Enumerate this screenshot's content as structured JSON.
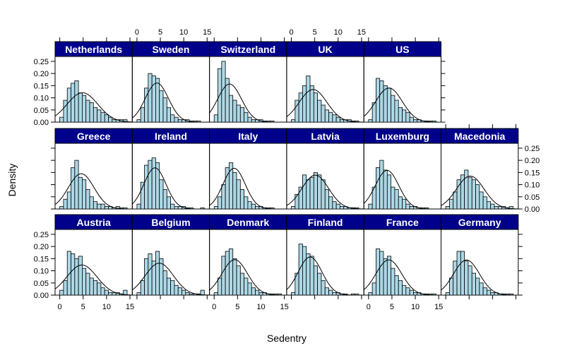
{
  "chart_data": {
    "type": "histogram",
    "xlabel": "Sedentry",
    "ylabel": "Density",
    "xlim": [
      -1,
      15.5
    ],
    "ylim": [
      0,
      0.27
    ],
    "x_ticks": [
      0,
      5,
      10,
      15
    ],
    "y_ticks": [
      0.0,
      0.05,
      0.1,
      0.15,
      0.2,
      0.25
    ],
    "x_tick_labels": [
      "0",
      "5",
      "10",
      "15"
    ],
    "y_tick_labels": [
      "0.00",
      "0.05",
      "0.10",
      "0.15",
      "0.20",
      "0.25"
    ],
    "bin_width": 0.8,
    "bin_start": 0,
    "grid": false,
    "layout": {
      "columns": 6,
      "rows": 3
    },
    "colors": {
      "bar_fill": "#add8e6",
      "strip_fill": "#00008b",
      "strip_text": "#ffffff",
      "curve": "#000000"
    },
    "panels": [
      {
        "name": "Netherlands",
        "row": 2,
        "col": 0,
        "density": [
          0.02,
          0.09,
          0.14,
          0.16,
          0.17,
          0.12,
          0.11,
          0.09,
          0.08,
          0.06,
          0.05,
          0.04,
          0.03,
          0.02,
          0.01,
          0.01,
          0.01,
          0.01
        ]
      },
      {
        "name": "Sweden",
        "row": 2,
        "col": 1,
        "density": [
          0.01,
          0.06,
          0.14,
          0.2,
          0.19,
          0.18,
          0.13,
          0.1,
          0.06,
          0.03,
          0.02,
          0.01,
          0.01,
          0.01,
          0.005,
          0.005,
          0.005,
          0.0
        ]
      },
      {
        "name": "Switzerland",
        "row": 2,
        "col": 2,
        "density": [
          0.03,
          0.22,
          0.25,
          0.18,
          0.11,
          0.09,
          0.07,
          0.06,
          0.04,
          0.02,
          0.01,
          0.01,
          0.01,
          0.005,
          0.005,
          0.005,
          0.0,
          0.0
        ]
      },
      {
        "name": "UK",
        "row": 2,
        "col": 3,
        "density": [
          0.01,
          0.09,
          0.12,
          0.15,
          0.19,
          0.15,
          0.12,
          0.09,
          0.07,
          0.05,
          0.04,
          0.03,
          0.02,
          0.01,
          0.01,
          0.01,
          0.005,
          0.005
        ]
      },
      {
        "name": "US",
        "row": 2,
        "col": 4,
        "density": [
          0.01,
          0.08,
          0.18,
          0.17,
          0.15,
          0.14,
          0.11,
          0.09,
          0.06,
          0.05,
          0.04,
          0.02,
          0.01,
          0.01,
          0.005,
          0.005,
          0.005,
          0.005
        ]
      },
      {
        "name": "Greece",
        "row": 1,
        "col": 0,
        "density": [
          0.01,
          0.04,
          0.07,
          0.17,
          0.2,
          0.13,
          0.12,
          0.08,
          0.05,
          0.03,
          0.02,
          0.02,
          0.01,
          0.01,
          0.005,
          0.01,
          0.005,
          0.005
        ]
      },
      {
        "name": "Ireland",
        "row": 1,
        "col": 1,
        "density": [
          0.02,
          0.11,
          0.18,
          0.2,
          0.21,
          0.19,
          0.12,
          0.08,
          0.05,
          0.02,
          0.01,
          0.01,
          0.01,
          0.005,
          0.005,
          0.0,
          0.0,
          0.005
        ]
      },
      {
        "name": "Italy",
        "row": 1,
        "col": 2,
        "density": [
          0.01,
          0.05,
          0.1,
          0.17,
          0.19,
          0.15,
          0.12,
          0.08,
          0.05,
          0.03,
          0.02,
          0.01,
          0.01,
          0.005,
          0.005,
          0.005,
          0.0,
          0.0
        ]
      },
      {
        "name": "Latvia",
        "row": 1,
        "col": 3,
        "density": [
          0.01,
          0.06,
          0.09,
          0.14,
          0.12,
          0.13,
          0.15,
          0.14,
          0.12,
          0.08,
          0.05,
          0.03,
          0.02,
          0.01,
          0.01,
          0.005,
          0.005,
          0.005
        ]
      },
      {
        "name": "Luxemburg",
        "row": 1,
        "col": 4,
        "density": [
          0.02,
          0.09,
          0.17,
          0.2,
          0.16,
          0.14,
          0.09,
          0.08,
          0.05,
          0.04,
          0.02,
          0.01,
          0.01,
          0.005,
          0.005,
          0.005,
          0.0,
          0.0
        ]
      },
      {
        "name": "Macedonia",
        "row": 1,
        "col": 5,
        "density": [
          0.01,
          0.04,
          0.07,
          0.12,
          0.14,
          0.16,
          0.13,
          0.12,
          0.1,
          0.07,
          0.05,
          0.03,
          0.02,
          0.01,
          0.01,
          0.01,
          0.005,
          0.01
        ]
      },
      {
        "name": "Austria",
        "row": 0,
        "col": 0,
        "density": [
          0.02,
          0.06,
          0.18,
          0.17,
          0.15,
          0.16,
          0.11,
          0.09,
          0.07,
          0.06,
          0.05,
          0.03,
          0.02,
          0.01,
          0.01,
          0.01,
          0.005,
          0.02
        ]
      },
      {
        "name": "Belgium",
        "row": 0,
        "col": 1,
        "density": [
          0.01,
          0.06,
          0.15,
          0.17,
          0.14,
          0.18,
          0.15,
          0.1,
          0.07,
          0.06,
          0.04,
          0.03,
          0.02,
          0.01,
          0.005,
          0.005,
          0.005,
          0.02
        ]
      },
      {
        "name": "Denmark",
        "row": 0,
        "col": 2,
        "density": [
          0.01,
          0.07,
          0.16,
          0.18,
          0.19,
          0.15,
          0.12,
          0.09,
          0.07,
          0.05,
          0.03,
          0.02,
          0.01,
          0.01,
          0.005,
          0.005,
          0.005,
          0.005
        ]
      },
      {
        "name": "Finland",
        "row": 0,
        "col": 3,
        "density": [
          0.01,
          0.09,
          0.21,
          0.2,
          0.17,
          0.16,
          0.12,
          0.09,
          0.06,
          0.03,
          0.02,
          0.01,
          0.01,
          0.005,
          0.005,
          0.0,
          0.005,
          0.005
        ]
      },
      {
        "name": "France",
        "row": 0,
        "col": 4,
        "density": [
          0.01,
          0.05,
          0.19,
          0.18,
          0.15,
          0.16,
          0.11,
          0.08,
          0.06,
          0.04,
          0.03,
          0.02,
          0.01,
          0.01,
          0.005,
          0.005,
          0.005,
          0.005
        ]
      },
      {
        "name": "Germany",
        "row": 0,
        "col": 5,
        "density": [
          0.01,
          0.07,
          0.14,
          0.18,
          0.18,
          0.14,
          0.12,
          0.09,
          0.07,
          0.05,
          0.03,
          0.02,
          0.01,
          0.01,
          0.005,
          0.005,
          0.005,
          0.005
        ]
      }
    ]
  }
}
